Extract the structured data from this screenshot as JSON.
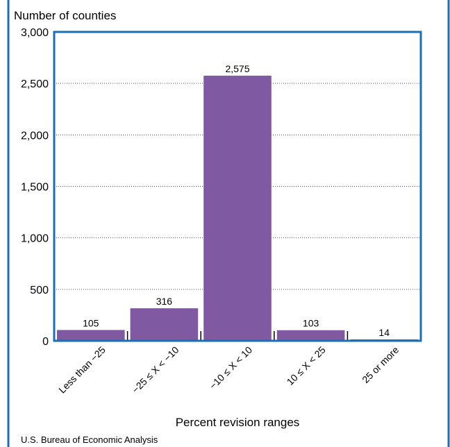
{
  "chart_data": {
    "type": "bar",
    "title": "",
    "ylabel": "Number of counties",
    "xlabel": "Percent revision ranges",
    "categories": [
      "Less than −25",
      "−25 ≤ X < −10",
      "−10 ≤ X < 10",
      "10 ≤ X < 25",
      "25 or more"
    ],
    "values": [
      105,
      316,
      2575,
      103,
      14
    ],
    "data_labels": [
      "105",
      "316",
      "2,575",
      "103",
      "14"
    ],
    "ylim": [
      0,
      3000
    ],
    "yticks": [
      0,
      500,
      1000,
      1500,
      2000,
      2500,
      3000
    ],
    "ytick_labels": [
      "0",
      "500",
      "1,000",
      "1,500",
      "2,000",
      "2,500",
      "3,000"
    ],
    "grid": true,
    "bar_color": "#8059a3",
    "frame_color": "#1a6fb5",
    "source": "U.S. Bureau of Economic Analysis"
  }
}
